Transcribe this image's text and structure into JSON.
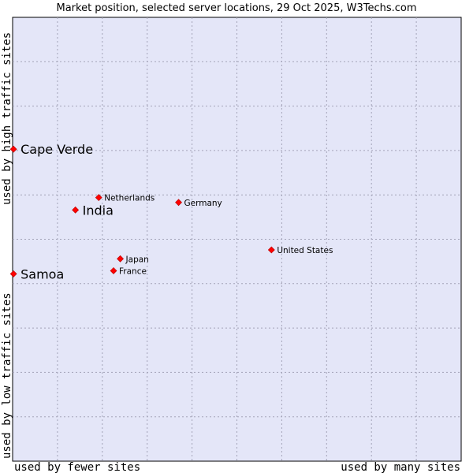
{
  "chart_data": {
    "type": "scatter",
    "title": "Market position, selected server locations, 29 Oct 2025, W3Techs.com",
    "xlabel_left": "used by fewer sites",
    "xlabel_right": "used by many sites",
    "ylabel_bottom": "used by low traffic sites",
    "ylabel_top": "used by high traffic sites",
    "xlim": [
      0,
      100
    ],
    "ylim": [
      0,
      100
    ],
    "grid": true,
    "grid_divisions": 10,
    "colors": {
      "plot_bg": "#e4e6f8",
      "grid": "#a3a3b8",
      "point": "#ff0000",
      "point_stroke": "#b30000"
    },
    "points": [
      {
        "name": "Cape Verde",
        "x": 0.2,
        "y": 70.3,
        "highlight": true
      },
      {
        "name": "Netherlands",
        "x": 19.2,
        "y": 59.4,
        "highlight": false
      },
      {
        "name": "Germany",
        "x": 37.0,
        "y": 58.3,
        "highlight": false
      },
      {
        "name": "India",
        "x": 14.0,
        "y": 56.6,
        "highlight": true
      },
      {
        "name": "United States",
        "x": 57.7,
        "y": 47.6,
        "highlight": false
      },
      {
        "name": "Japan",
        "x": 24.0,
        "y": 45.6,
        "highlight": false
      },
      {
        "name": "France",
        "x": 22.5,
        "y": 42.9,
        "highlight": false
      },
      {
        "name": "Samoa",
        "x": 0.2,
        "y": 42.2,
        "highlight": true
      }
    ]
  }
}
